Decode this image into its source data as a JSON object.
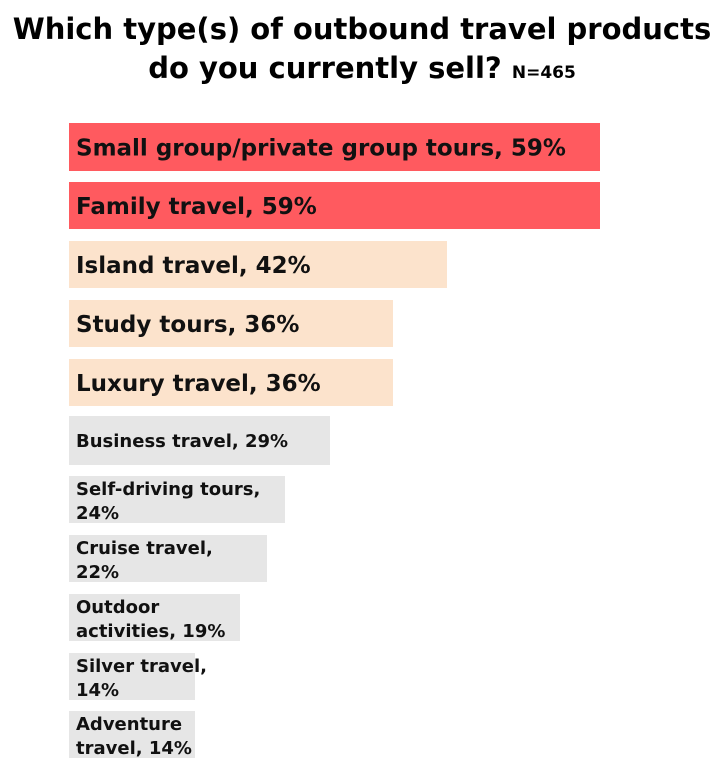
{
  "chart_data": {
    "type": "bar",
    "orientation": "horizontal",
    "title": "Which type(s) of outbound travel products do you currently sell?",
    "title_lines": [
      "Which type(s) of outbound travel products",
      "do you currently sell?"
    ],
    "subtitle": "N=465",
    "categories": [
      "Small group/private group tours",
      "Family travel",
      "Island travel",
      "Study tours",
      "Luxury travel",
      "Business travel",
      "Self-driving tours",
      "Cruise travel",
      "Outdoor activities",
      "Silver travel",
      "Adventure travel"
    ],
    "values": [
      59,
      59,
      42,
      36,
      36,
      29,
      24,
      22,
      19,
      14,
      14
    ],
    "data_labels": [
      [
        "Small group/private group tours, 59%"
      ],
      [
        "Family travel, 59%"
      ],
      [
        "Island travel, 42%"
      ],
      [
        "Study tours, 36%"
      ],
      [
        "Luxury travel, 36%"
      ],
      [
        "Business travel, 29%"
      ],
      [
        "Self-driving tours,",
        "24%"
      ],
      [
        "Cruise travel,",
        "22%"
      ],
      [
        "Outdoor",
        "activities, 19%"
      ],
      [
        "Silver travel,",
        "14%"
      ],
      [
        "Adventure",
        "travel, 14%"
      ]
    ],
    "bar_colors": [
      "#FF5A5F",
      "#FF5A5F",
      "#FCE3CC",
      "#FCE3CC",
      "#FCE3CC",
      "#E6E6E6",
      "#E6E6E6",
      "#E6E6E6",
      "#E6E6E6",
      "#E6E6E6",
      "#E6E6E6"
    ],
    "unit": "%",
    "xlim": [
      0,
      59
    ],
    "grid": false,
    "legend": "none"
  }
}
